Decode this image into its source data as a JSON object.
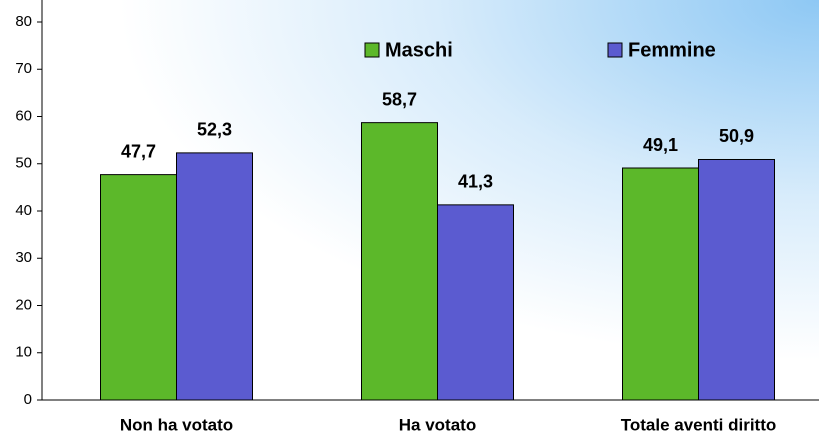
{
  "chart_data": {
    "type": "bar",
    "categories": [
      "Non ha votato",
      "Ha votato",
      "Totale aventi diritto"
    ],
    "series": [
      {
        "name": "Maschi",
        "color": "#5cb82a",
        "values": [
          47.7,
          58.7,
          49.1
        ],
        "value_labels": [
          "47,7",
          "58,7",
          "49,1"
        ]
      },
      {
        "name": "Femmine",
        "color": "#5b5bd0",
        "values": [
          52.3,
          41.3,
          50.9
        ],
        "value_labels": [
          "52,3",
          "41,3",
          "50,9"
        ]
      }
    ],
    "ylim": [
      0,
      80
    ],
    "yticks": [
      0,
      10,
      20,
      30,
      40,
      50,
      60,
      70,
      80
    ],
    "grid": false
  }
}
